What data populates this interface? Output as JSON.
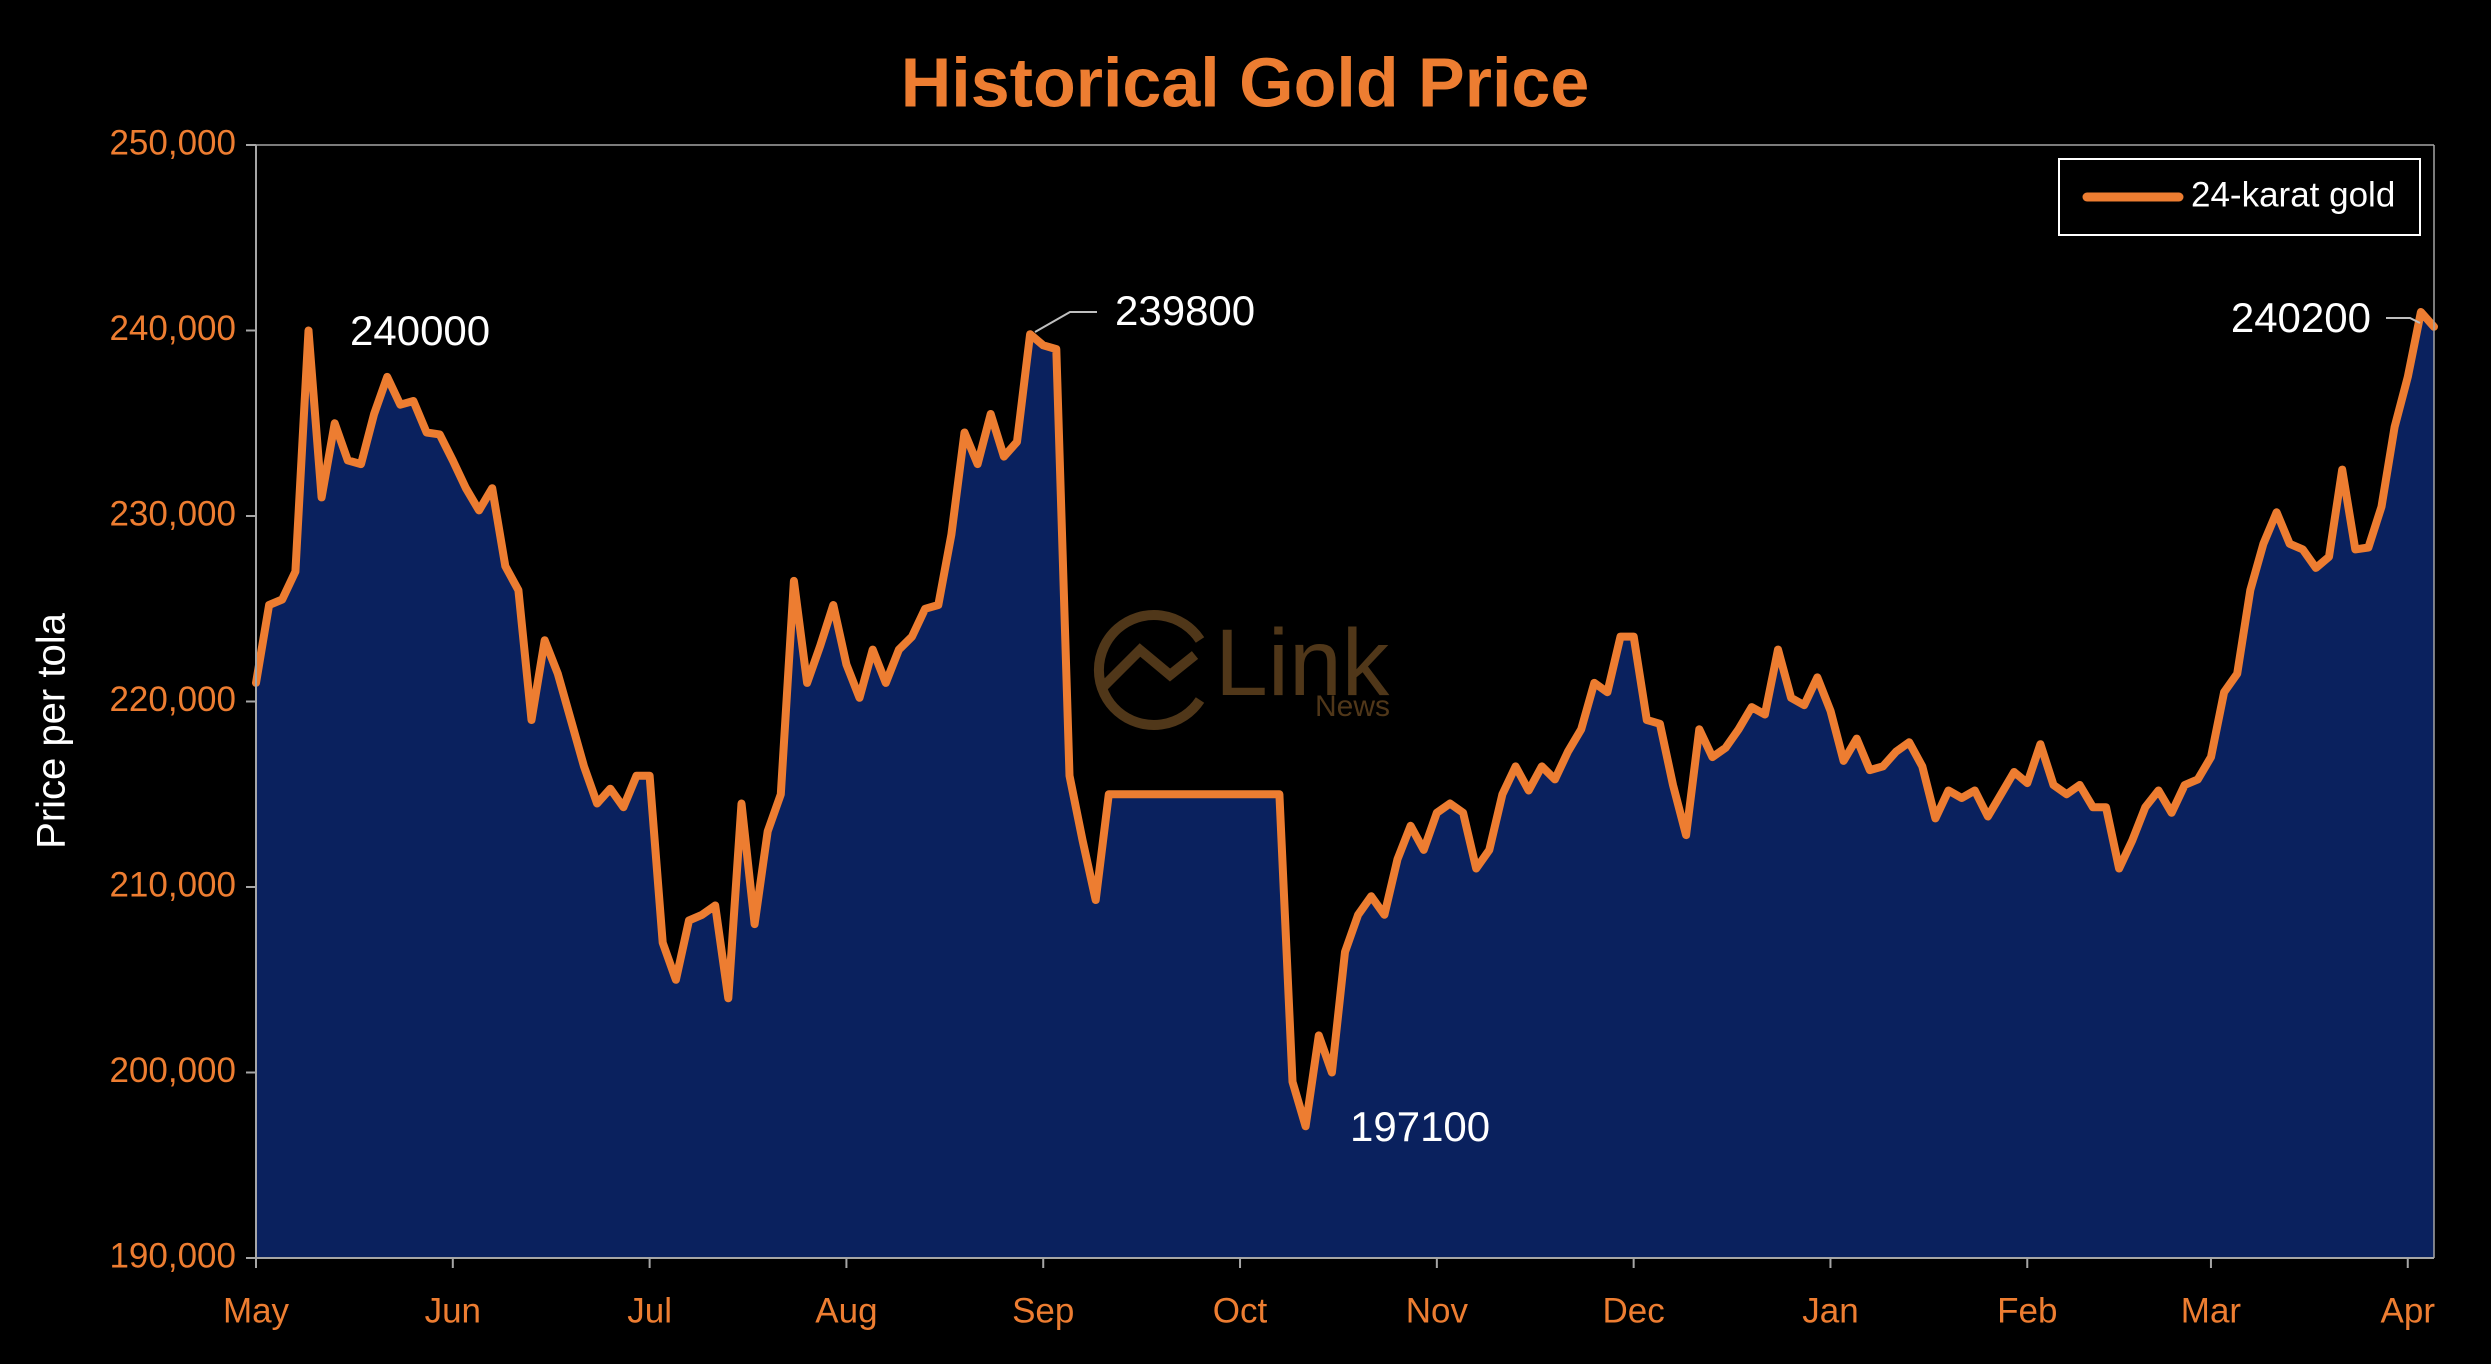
{
  "chart_data": {
    "type": "area",
    "title": "Historical Gold Price",
    "y_label": "Price per tola",
    "watermark": {
      "logo": "Link",
      "sub": "News"
    },
    "categories": [
      "May",
      null,
      null,
      null,
      null,
      null,
      null,
      null,
      null,
      null,
      null,
      null,
      null,
      null,
      null,
      "Jun",
      null,
      null,
      null,
      null,
      null,
      null,
      null,
      null,
      null,
      null,
      null,
      null,
      null,
      null,
      "Jul",
      null,
      null,
      null,
      null,
      null,
      null,
      null,
      null,
      null,
      null,
      null,
      null,
      null,
      null,
      "Aug",
      null,
      null,
      null,
      null,
      null,
      null,
      null,
      null,
      null,
      null,
      null,
      null,
      null,
      null,
      "Sep",
      null,
      null,
      null,
      null,
      null,
      null,
      null,
      null,
      null,
      null,
      null,
      null,
      null,
      null,
      "Oct",
      null,
      null,
      null,
      null,
      null,
      null,
      null,
      null,
      null,
      null,
      null,
      null,
      null,
      null,
      "Nov",
      null,
      null,
      null,
      null,
      null,
      null,
      null,
      null,
      null,
      null,
      null,
      null,
      null,
      null,
      "Dec",
      null,
      null,
      null,
      null,
      null,
      null,
      null,
      null,
      null,
      null,
      null,
      null,
      null,
      null,
      "Jan",
      null,
      null,
      null,
      null,
      null,
      null,
      null,
      null,
      null,
      null,
      null,
      null,
      null,
      null,
      "Feb",
      null,
      null,
      null,
      null,
      null,
      null,
      null,
      null,
      null,
      null,
      null,
      null,
      null,
      "Mar",
      null,
      null,
      null,
      null,
      null,
      null,
      null,
      null,
      null,
      null,
      null,
      null,
      null,
      null,
      "Apr",
      null,
      null
    ],
    "series": [
      {
        "name": "24-karat gold",
        "color": "#ed7d31",
        "fill": "#0a215e",
        "values": [
          221000,
          225200,
          225500,
          227000,
          240000,
          231000,
          235000,
          233000,
          232800,
          235500,
          237500,
          236000,
          236200,
          234500,
          234400,
          233000,
          231500,
          230300,
          231500,
          227300,
          226000,
          219000,
          223300,
          221500,
          219000,
          216500,
          214500,
          215300,
          214300,
          216000,
          216000,
          207000,
          205000,
          208200,
          208500,
          209000,
          204000,
          214500,
          208000,
          213000,
          215000,
          226500,
          221000,
          223000,
          225200,
          222000,
          220200,
          222800,
          221000,
          222800,
          223500,
          225000,
          225200,
          229000,
          234500,
          232800,
          235500,
          233200,
          234000,
          239800,
          239200,
          239000,
          216000,
          212500,
          209300,
          215000,
          215000,
          215000,
          215000,
          215000,
          215000,
          215000,
          215000,
          215000,
          215000,
          215000,
          215000,
          215000,
          215000,
          199500,
          197100,
          202000,
          200000,
          206500,
          208500,
          209500,
          208500,
          211500,
          213300,
          212000,
          214000,
          214500,
          214000,
          211000,
          212000,
          215000,
          216500,
          215200,
          216500,
          215800,
          217300,
          218500,
          221000,
          220500,
          223500,
          223500,
          219000,
          218800,
          215500,
          212800,
          218500,
          217000,
          217500,
          218500,
          219700,
          219300,
          222800,
          220200,
          219800,
          221300,
          219500,
          216800,
          218000,
          216300,
          216500,
          217300,
          217800,
          216500,
          213700,
          215200,
          214800,
          215200,
          213800,
          215000,
          216200,
          215600,
          217700,
          215500,
          215000,
          215500,
          214300,
          214300,
          211000,
          212500,
          214300,
          215200,
          214000,
          215500,
          215800,
          217000,
          220500,
          221500,
          226000,
          228500,
          230200,
          228500,
          228200,
          227200,
          227800,
          232500,
          228200,
          228300,
          230500,
          234800,
          237500,
          241000,
          240200
        ]
      }
    ],
    "annotations": [
      "240000",
      "239800",
      "197100",
      "240200"
    ],
    "ylim": [
      190000,
      250000
    ],
    "yticks": [
      {
        "value": 190000,
        "label": "190,000"
      },
      {
        "value": 200000,
        "label": "200,000"
      },
      {
        "value": 210000,
        "label": "210,000"
      },
      {
        "value": 220000,
        "label": "220,000"
      },
      {
        "value": 230000,
        "label": "230,000"
      },
      {
        "value": 240000,
        "label": "240,000"
      },
      {
        "value": 250000,
        "label": "250,000"
      }
    ],
    "grid": false,
    "legend": "top-right"
  }
}
